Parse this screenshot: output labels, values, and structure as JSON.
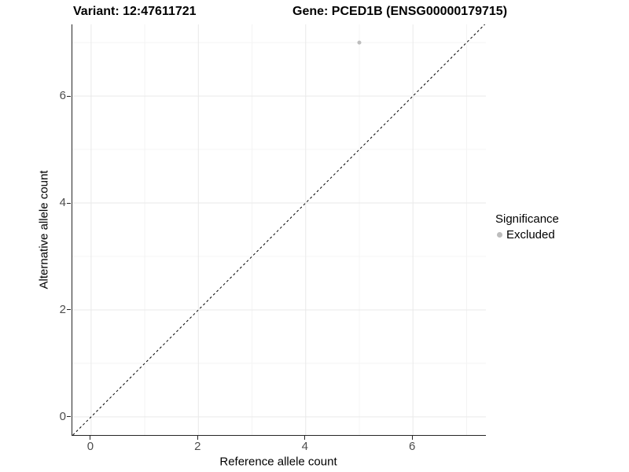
{
  "titles": {
    "left": "Variant: 12:47611721",
    "right": "Gene: PCED1B (ENSG00000179715)"
  },
  "chart_data": {
    "type": "scatter",
    "title_left": "Variant: 12:47611721",
    "title_right": "Gene: PCED1B (ENSG00000179715)",
    "xlabel": "Reference allele count",
    "ylabel": "Alternative allele count",
    "xlim": [
      -0.35,
      7.36
    ],
    "ylim": [
      -0.34,
      7.34
    ],
    "x_major_ticks": [
      0,
      2,
      4,
      6
    ],
    "x_minor_ticks": [
      1,
      3,
      5,
      7
    ],
    "y_major_ticks": [
      0,
      2,
      4,
      6
    ],
    "y_minor_ticks": [
      1,
      3,
      5,
      7
    ],
    "grid": true,
    "points": [
      {
        "x": 5,
        "y": 7,
        "series": "Excluded"
      }
    ],
    "reference_line": {
      "kind": "abline",
      "slope": 1,
      "intercept": 0,
      "style": "dashed",
      "color": "#000000"
    },
    "legend": {
      "title": "Significance",
      "position": "right",
      "items": [
        {
          "label": "Excluded",
          "color": "#bdbdbd"
        }
      ]
    },
    "theme": {
      "axis_line_color": "#262626",
      "grid_major_color": "#e9e9e9",
      "grid_minor_color": "#f4f4f4",
      "tick_label_color": "#4d4d4d",
      "point_color": "#bdbdbd",
      "point_radius": 2.5,
      "background": "#ffffff"
    }
  }
}
